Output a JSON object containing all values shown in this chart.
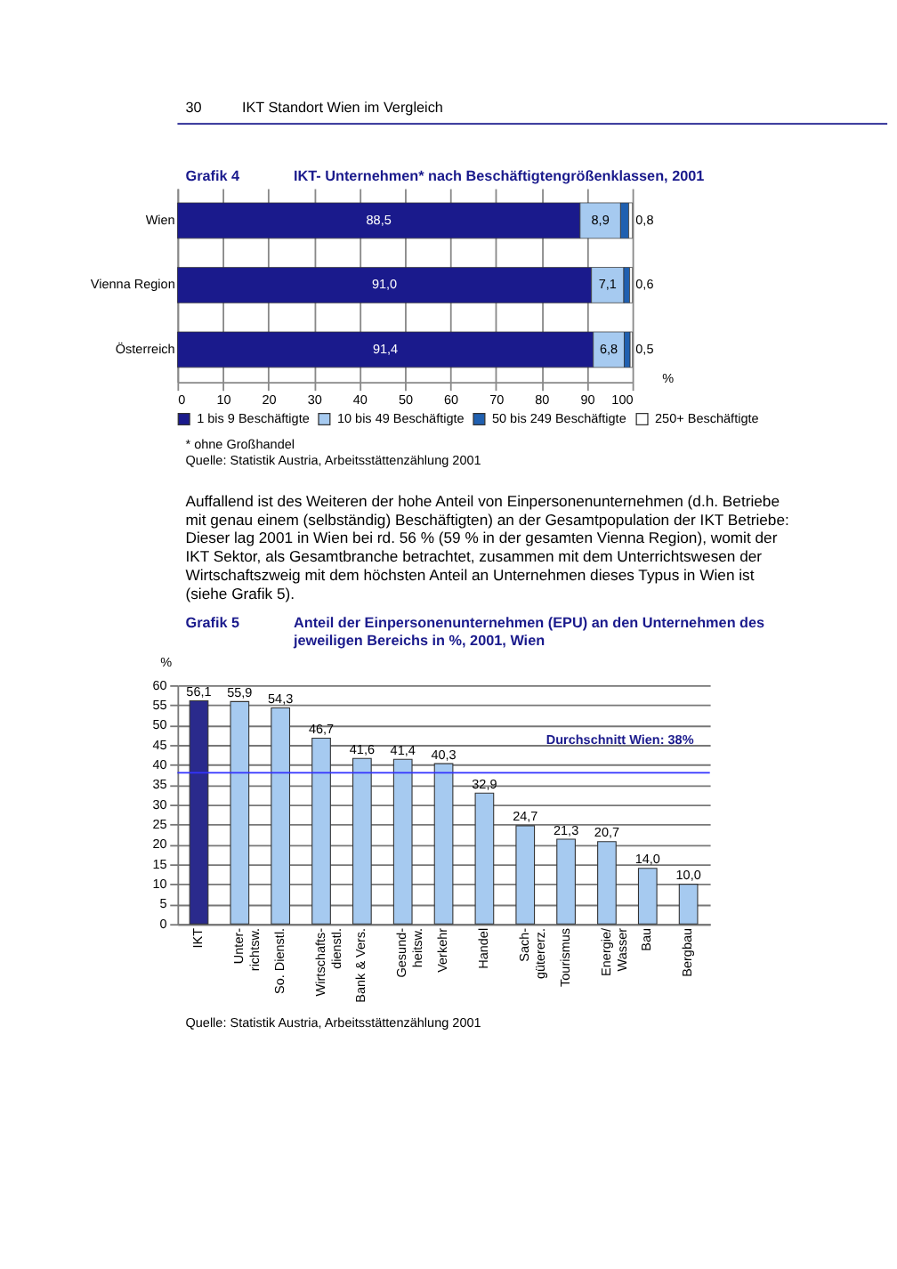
{
  "chart_data": [
    {
      "type": "bar",
      "orientation": "horizontal",
      "stacked": true,
      "title": "IKT- Unternehmen* nach Beschäftigtengrößenklassen, 2001",
      "xlabel": "%",
      "annotations": [
        "30",
        "IKT Standort Wien im Vergleich",
        "Grafik 4",
        "* ohne Großhandel",
        "Quelle: Statistik Austria, Arbeitsstättenzählung 2001"
      ],
      "categories": [
        "Wien",
        "Vienna Region",
        "Österreich"
      ],
      "series": [
        {
          "name": "1 bis 9 Beschäftigte",
          "color": "#1a1a8c",
          "values": [
            88.5,
            91.0,
            91.4
          ],
          "value_labels": [
            "88,5",
            "91,0",
            "91,4"
          ]
        },
        {
          "name": "10 bis 49 Beschäftigte",
          "color": "#a6caf0",
          "values": [
            8.9,
            7.1,
            6.8
          ],
          "value_labels": [
            "8,9",
            "7,1",
            "6,8"
          ]
        },
        {
          "name": "50 bis 249 Beschäftigte",
          "color": "#2060b0",
          "values": [
            1.8,
            1.3,
            1.3
          ],
          "value_labels": [
            null,
            null,
            null
          ]
        },
        {
          "name": "250+ Beschäftigte",
          "color": "#ffffff",
          "values": [
            0.8,
            0.6,
            0.5
          ],
          "value_labels": [
            "0,8",
            "0,6",
            "0,5"
          ]
        }
      ],
      "xlim": [
        0,
        100
      ],
      "xticks": [
        0,
        10,
        20,
        30,
        40,
        50,
        60,
        70,
        80,
        90,
        100
      ],
      "grid": "x",
      "legend": "bottom"
    },
    {
      "type": "bar",
      "title": "Anteil der Einpersonenunternehmen (EPU) an den Unternehmen des\njeweiligen Bereichs in %, 2001, Wien",
      "ylabel": "%",
      "annotations": [
        "Auffallend ist des Weiteren der hohe Anteil von Einpersonenunternehmen (d.h. Betriebe mit genau einem (selbständig) Beschäftigten) an der Gesamtpopulation der IKT Betriebe: Dieser lag 2001 in Wien bei rd. 56 % (59 % in der gesamten Vienna Region), womit der IKT Sektor, als Gesamtbranche betrachtet, zusammen mit dem Unterrichtswesen der Wirtschaftszweig mit dem höchsten Anteil an Unternehmen dieses Typus in Wien ist (siehe Grafik 5).",
        "Grafik 5",
        "Quelle: Statistik Austria, Arbeitsstättenzählung 2001"
      ],
      "categories": [
        "IKT",
        "Unter-\nrichtsw.",
        "So. Dienstl.",
        "Wirtschafts-\ndienstl.",
        "Bank & Vers.",
        "Gesund-\nheitsw.",
        "Verkehr",
        "Handel",
        "Sach-\ngütererz.",
        "Tourismus",
        "Energie/\nWasser",
        "Bau",
        "Bergbau"
      ],
      "values": [
        56.1,
        55.9,
        54.3,
        46.7,
        41.6,
        41.4,
        40.3,
        32.9,
        24.7,
        21.3,
        20.7,
        14.0,
        10.0
      ],
      "value_labels": [
        "56,1",
        "55,9",
        "54,3",
        "46,7",
        "41,6",
        "41,4",
        "40,3",
        "32,9",
        "24,7",
        "21,3",
        "20,7",
        "14,0",
        "10,0"
      ],
      "colors": [
        "#2a2a8c",
        "#a6caf0",
        "#a6caf0",
        "#a6caf0",
        "#a6caf0",
        "#a6caf0",
        "#a6caf0",
        "#a6caf0",
        "#a6caf0",
        "#a6caf0",
        "#a6caf0",
        "#a6caf0",
        "#a6caf0"
      ],
      "ylim": [
        0,
        60
      ],
      "yticks": [
        0,
        5,
        10,
        15,
        20,
        25,
        30,
        35,
        40,
        45,
        50,
        55,
        60
      ],
      "grid": "y",
      "ref_lines": [
        {
          "axis": "y",
          "value": 38,
          "label": "Durchschnitt Wien:  38%",
          "color": "#3333ff"
        }
      ]
    }
  ]
}
